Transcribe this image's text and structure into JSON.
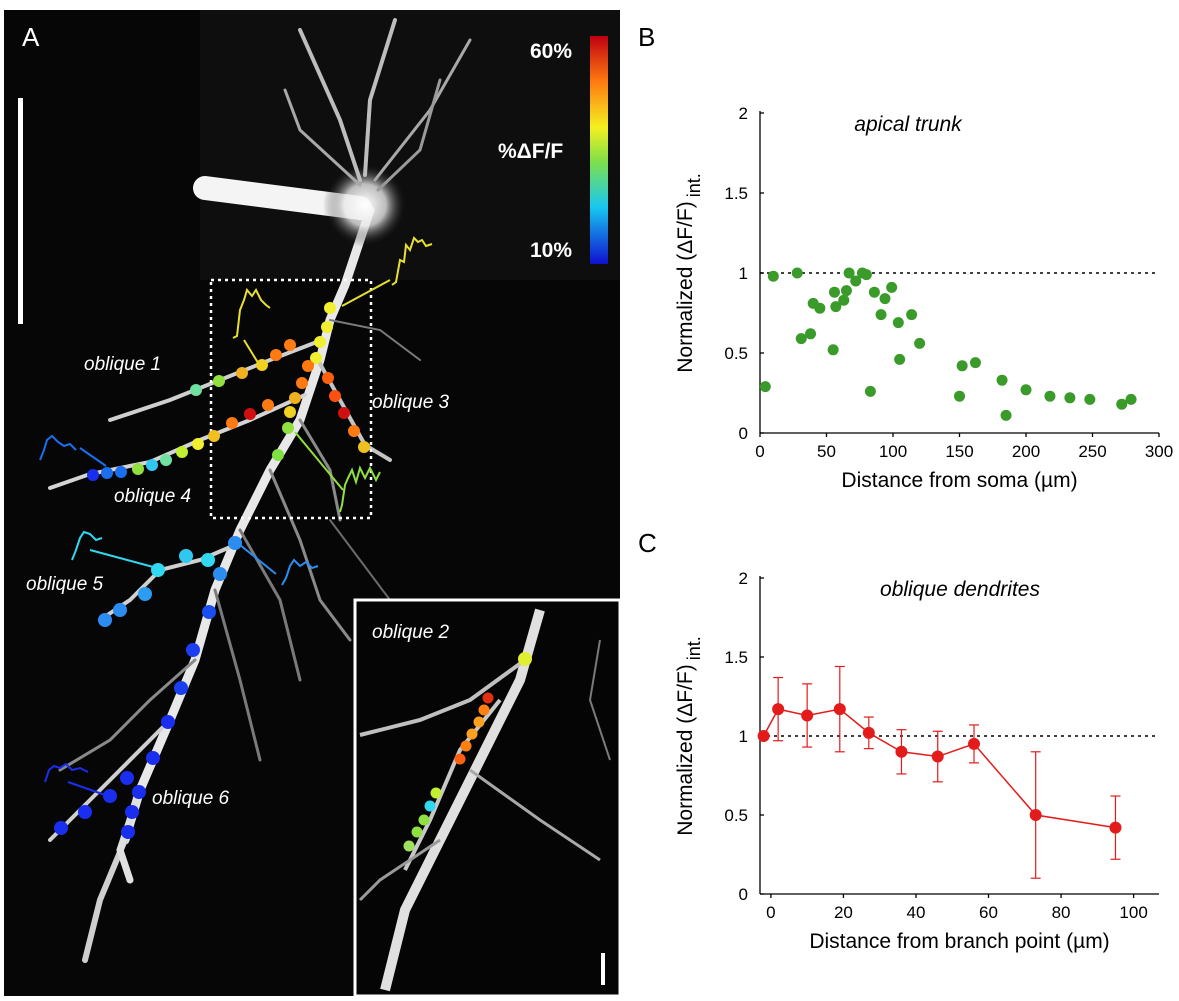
{
  "panels": {
    "a": "A",
    "b": "B",
    "c": "C"
  },
  "micrograph": {
    "labels": [
      "oblique 1",
      "oblique 3",
      "oblique 4",
      "oblique 5",
      "oblique 6",
      "oblique 2"
    ],
    "colorbar": {
      "max": "60%",
      "min": "10%",
      "title": "%ΔF/F"
    }
  },
  "chart_data": [
    {
      "type": "scatter",
      "title": "apical trunk",
      "xlabel": "Distance from soma (µm)",
      "ylabel": "Normalized (ΔF/F)",
      "ylabel_sub": "int.",
      "xlim": [
        0,
        300
      ],
      "ylim": [
        0,
        2
      ],
      "xticks": [
        "0",
        "50",
        "100",
        "150",
        "200",
        "250",
        "300"
      ],
      "yticks": [
        "0",
        "0.5",
        "1",
        "1.5",
        "2"
      ],
      "reference_line": 1,
      "color": "#3a9a2a",
      "points": [
        [
          4,
          0.29
        ],
        [
          10,
          0.98
        ],
        [
          28,
          1.0
        ],
        [
          31,
          0.59
        ],
        [
          38,
          0.62
        ],
        [
          40,
          0.81
        ],
        [
          45,
          0.78
        ],
        [
          55,
          0.52
        ],
        [
          56,
          0.88
        ],
        [
          57,
          0.79
        ],
        [
          63,
          0.83
        ],
        [
          65,
          0.89
        ],
        [
          67,
          1.0
        ],
        [
          72,
          0.95
        ],
        [
          77,
          1.0
        ],
        [
          80,
          0.99
        ],
        [
          83,
          0.26
        ],
        [
          86,
          0.88
        ],
        [
          91,
          0.74
        ],
        [
          94,
          0.84
        ],
        [
          99,
          0.91
        ],
        [
          104,
          0.69
        ],
        [
          105,
          0.46
        ],
        [
          114,
          0.74
        ],
        [
          120,
          0.56
        ],
        [
          150,
          0.23
        ],
        [
          152,
          0.42
        ],
        [
          162,
          0.44
        ],
        [
          182,
          0.33
        ],
        [
          185,
          0.11
        ],
        [
          200,
          0.27
        ],
        [
          218,
          0.23
        ],
        [
          233,
          0.22
        ],
        [
          248,
          0.21
        ],
        [
          272,
          0.18
        ],
        [
          279,
          0.21
        ]
      ]
    },
    {
      "type": "line",
      "title": "oblique dendrites",
      "xlabel": "Distance from branch point (µm)",
      "ylabel": "Normalized (ΔF/F)",
      "ylabel_sub": "int.",
      "xlim": [
        -3,
        107
      ],
      "ylim": [
        0,
        2
      ],
      "xticks": [
        "0",
        "20",
        "40",
        "60",
        "80",
        "100"
      ],
      "yticks": [
        "0",
        "0.5",
        "1",
        "1.5",
        "2"
      ],
      "reference_line": 1,
      "color": "#e31b1b",
      "series": [
        {
          "x": [
            -2,
            2,
            10,
            19,
            27,
            36,
            46,
            56,
            73,
            95
          ],
          "y": [
            1.0,
            1.17,
            1.13,
            1.17,
            1.02,
            0.9,
            0.87,
            0.95,
            0.5,
            0.42
          ],
          "err": [
            0.0,
            0.2,
            0.2,
            0.27,
            0.1,
            0.14,
            0.16,
            0.12,
            0.4,
            0.2
          ]
        }
      ]
    }
  ]
}
